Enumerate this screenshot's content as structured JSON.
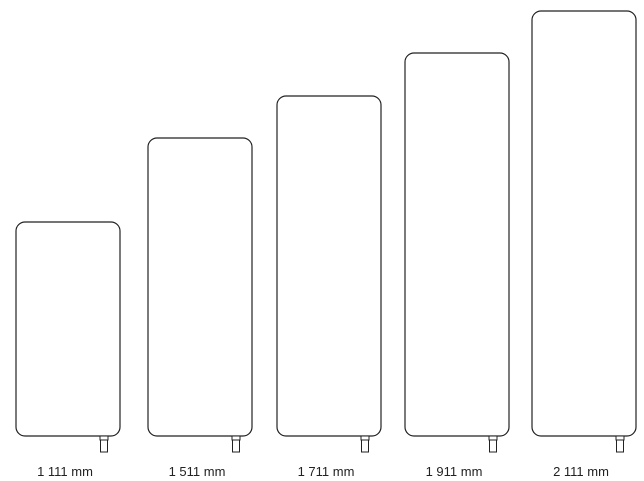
{
  "diagram": {
    "panels": [
      {
        "height_label": "1 111 mm",
        "height_mm": 1111
      },
      {
        "height_label": "1 511 mm",
        "height_mm": 1511
      },
      {
        "height_label": "1 711 mm",
        "height_mm": 1711
      },
      {
        "height_label": "1 911 mm",
        "height_mm": 1911
      },
      {
        "height_label": "2 111 mm",
        "height_mm": 2111
      }
    ]
  },
  "colors": {
    "stroke": "#222222",
    "background": "#ffffff"
  }
}
